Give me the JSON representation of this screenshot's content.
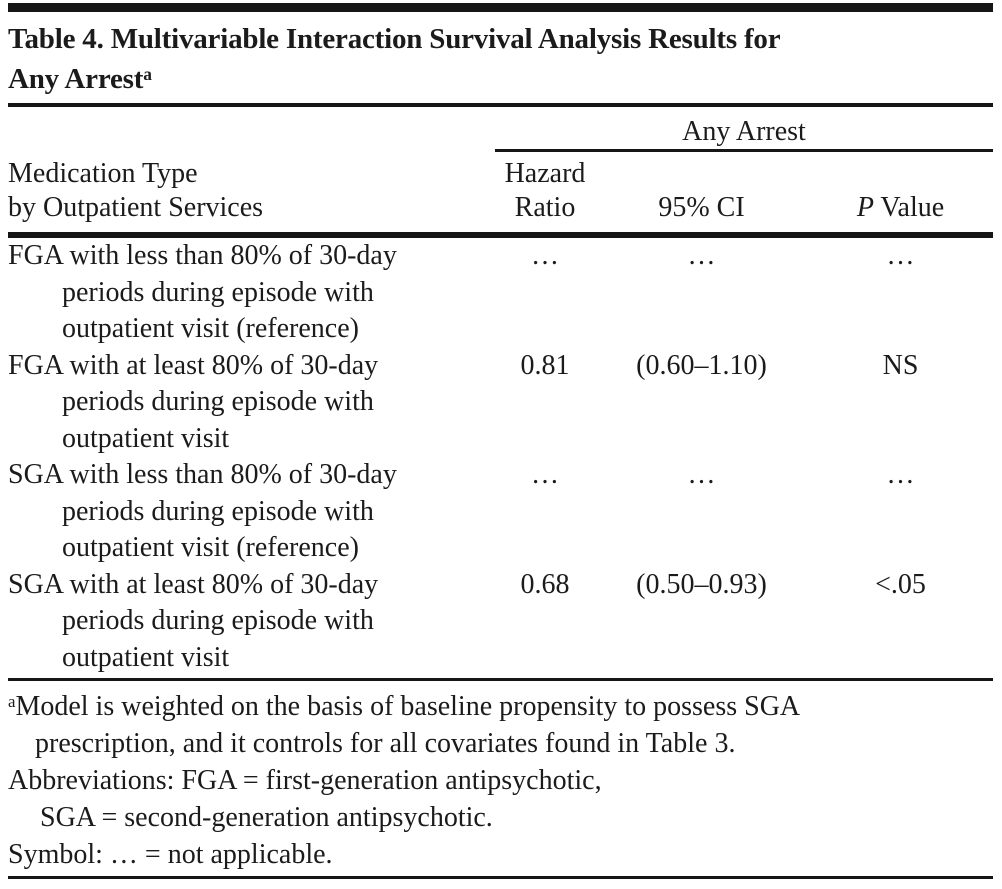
{
  "title": {
    "text": "Table 4. Multivariable Interaction Survival Analysis Results for\nAny Arrest",
    "sup": "a"
  },
  "header": {
    "spanner": "Any Arrest",
    "stub": "Medication Type\nby Outpatient Services",
    "col_hazard": "Hazard\nRatio",
    "col_ci": "95% CI",
    "col_p_italic": "P",
    "col_p_rest": " Value"
  },
  "rows": [
    {
      "label": "FGA with less than 80% of 30-day\nperiods during episode with\noutpatient visit (reference)",
      "hazard_ratio": "…",
      "ci": "…",
      "p_value": "…"
    },
    {
      "label": "FGA with at least 80% of 30-day\nperiods during episode with\noutpatient visit",
      "hazard_ratio": "0.81",
      "ci": "(0.60–1.10)",
      "p_value": "NS"
    },
    {
      "label": "SGA with less than 80% of 30-day\nperiods during episode with\noutpatient visit (reference)",
      "hazard_ratio": "…",
      "ci": "…",
      "p_value": "…"
    },
    {
      "label": "SGA with at least 80% of 30-day\nperiods during episode with\noutpatient visit",
      "hazard_ratio": "0.68",
      "ci": "(0.50–0.93)",
      "p_value": "<.05"
    }
  ],
  "footnotes": [
    {
      "sup": "a",
      "text": "Model is weighted on the basis of baseline propensity to possess SGA\nprescription, and it controls for all covariates found in Table 3."
    },
    {
      "sup": "",
      "text": "Abbreviations: FGA = first-generation antipsychotic,\nSGA = second-generation antipsychotic."
    },
    {
      "sup": "",
      "text": "Symbol: … = not applicable."
    }
  ],
  "colors": {
    "text": "#1b1b1b",
    "rule": "#161616",
    "background": "#ffffff"
  }
}
